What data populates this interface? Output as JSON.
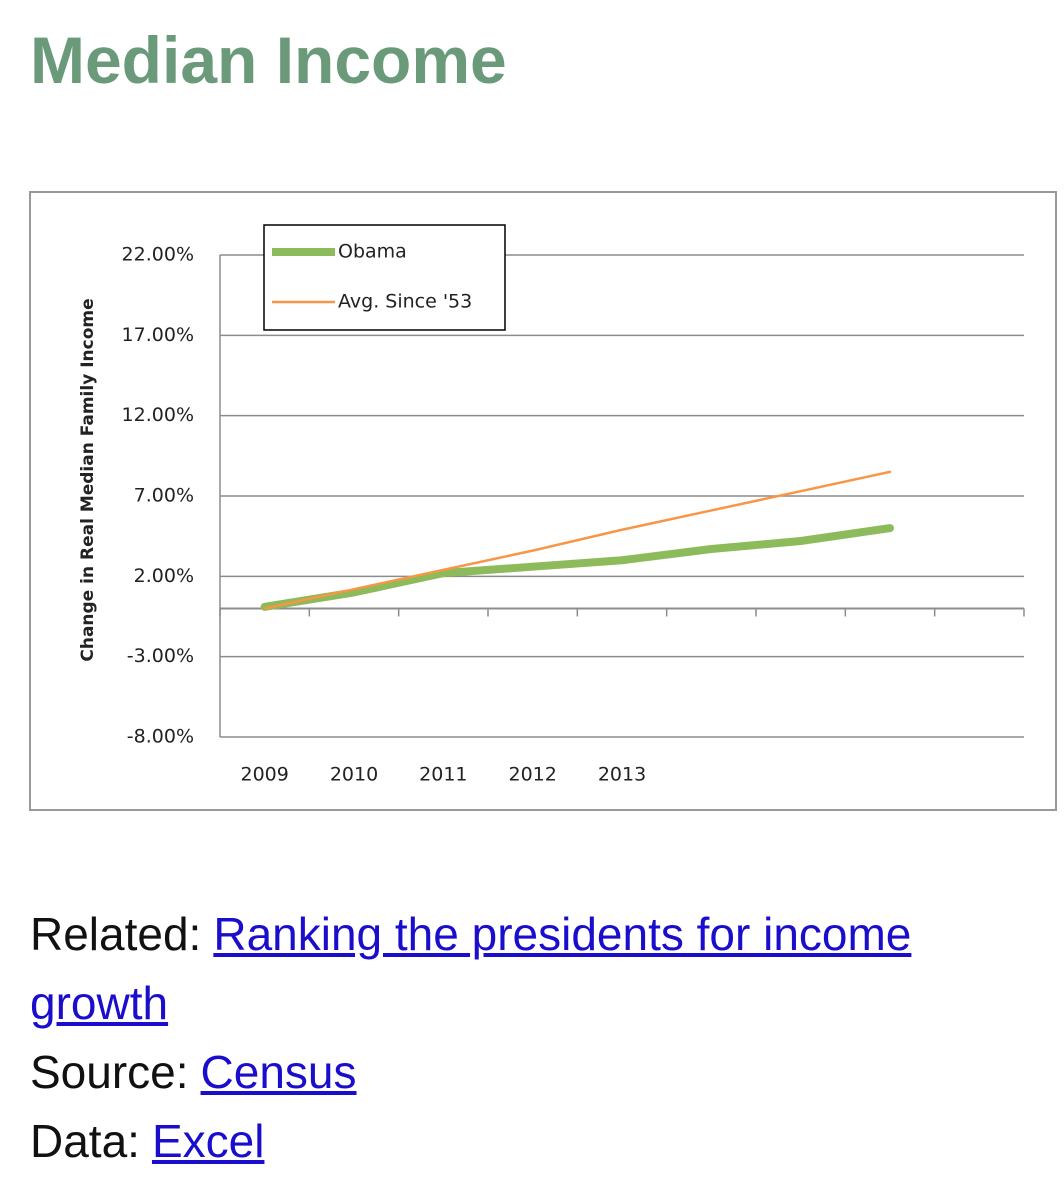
{
  "page": {
    "heading": "Median Income",
    "links": [
      {
        "label": "Related:",
        "text": "Ranking the presidents for income growth"
      },
      {
        "label": "Source:",
        "text": "Census"
      },
      {
        "label": "Data:",
        "text": "Excel"
      }
    ]
  },
  "chart_data": {
    "type": "line",
    "y_label": "Change in Real Median Family Income",
    "categories": [
      "2009",
      "2010",
      "2011",
      "2012",
      "2013",
      null,
      null,
      null,
      null
    ],
    "series": [
      {
        "name": "Obama",
        "color": "#8dba5a",
        "values": [
          0.1,
          1.0,
          2.2,
          2.6,
          3.0,
          3.7,
          4.2,
          5.0,
          null
        ]
      },
      {
        "name": "Avg. Since '53",
        "color": "#f79646",
        "values": [
          0,
          1.2,
          2.4,
          3.6,
          4.9,
          6.1,
          7.3,
          8.5,
          null
        ]
      }
    ],
    "ylim": [
      -8,
      22
    ],
    "yticks": [
      {
        "value": -8,
        "label": "-8.00%"
      },
      {
        "value": -3,
        "label": "-3.00%"
      },
      {
        "value": 2,
        "label": "2.00%"
      },
      {
        "value": 7,
        "label": "7.00%"
      },
      {
        "value": 12,
        "label": "12.00%"
      },
      {
        "value": 17,
        "label": "17.00%"
      },
      {
        "value": 22,
        "label": "22.00%"
      }
    ],
    "grid": true,
    "legend": "upper left"
  }
}
